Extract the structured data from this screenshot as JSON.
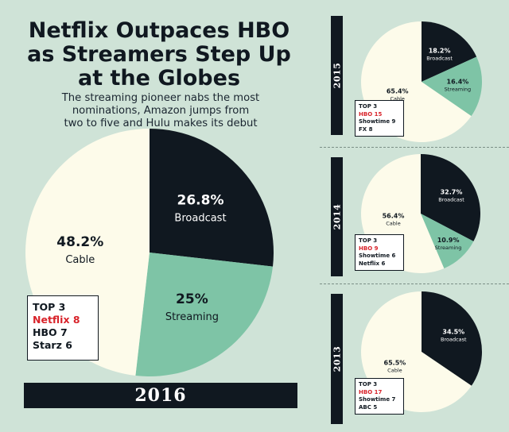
{
  "title_lines": [
    "Netflix Outpaces HBO",
    "as Streamers Step Up",
    "at the Globes"
  ],
  "subtitle_lines": [
    "The streaming pioneer nabs the most",
    "nominations, Amazon jumps from",
    "two to five and Hulu makes its debut"
  ],
  "colors": {
    "broadcast": "#101820",
    "streaming": "#7ec4a6",
    "cable": "#fdfbea",
    "background": "#cfe3d7",
    "highlight": "#d8232a"
  },
  "chart_data": [
    {
      "type": "pie",
      "year": "2016",
      "slices": [
        {
          "name": "Broadcast",
          "value": 26.8,
          "label": "26.8%"
        },
        {
          "name": "Streaming",
          "value": 25,
          "label": "25%"
        },
        {
          "name": "Cable",
          "value": 48.2,
          "label": "48.2%"
        }
      ],
      "top3": {
        "heading": "TOP 3",
        "items": [
          "Netflix 8",
          "HBO 7",
          "Starz 6"
        ]
      }
    },
    {
      "type": "pie",
      "year": "2015",
      "slices": [
        {
          "name": "Broadcast",
          "value": 18.2,
          "label": "18.2%"
        },
        {
          "name": "Streaming",
          "value": 16.4,
          "label": "16.4%"
        },
        {
          "name": "Cable",
          "value": 65.4,
          "label": "65.4%"
        }
      ],
      "top3": {
        "heading": "TOP 3",
        "items": [
          "HBO 15",
          "Showtime 9",
          "FX 8"
        ]
      }
    },
    {
      "type": "pie",
      "year": "2014",
      "slices": [
        {
          "name": "Broadcast",
          "value": 32.7,
          "label": "32.7%"
        },
        {
          "name": "Streaming",
          "value": 10.9,
          "label": "10.9%"
        },
        {
          "name": "Cable",
          "value": 56.4,
          "label": "56.4%"
        }
      ],
      "top3": {
        "heading": "TOP 3",
        "items": [
          "HBO 9",
          "Showtime 6",
          "Netflix 6"
        ]
      }
    },
    {
      "type": "pie",
      "year": "2013",
      "slices": [
        {
          "name": "Broadcast",
          "value": 34.5,
          "label": "34.5%"
        },
        {
          "name": "Cable",
          "value": 65.5,
          "label": "65.5%"
        }
      ],
      "top3": {
        "heading": "TOP 3",
        "items": [
          "HBO 17",
          "Showtime 7",
          "ABC 5"
        ]
      }
    }
  ]
}
